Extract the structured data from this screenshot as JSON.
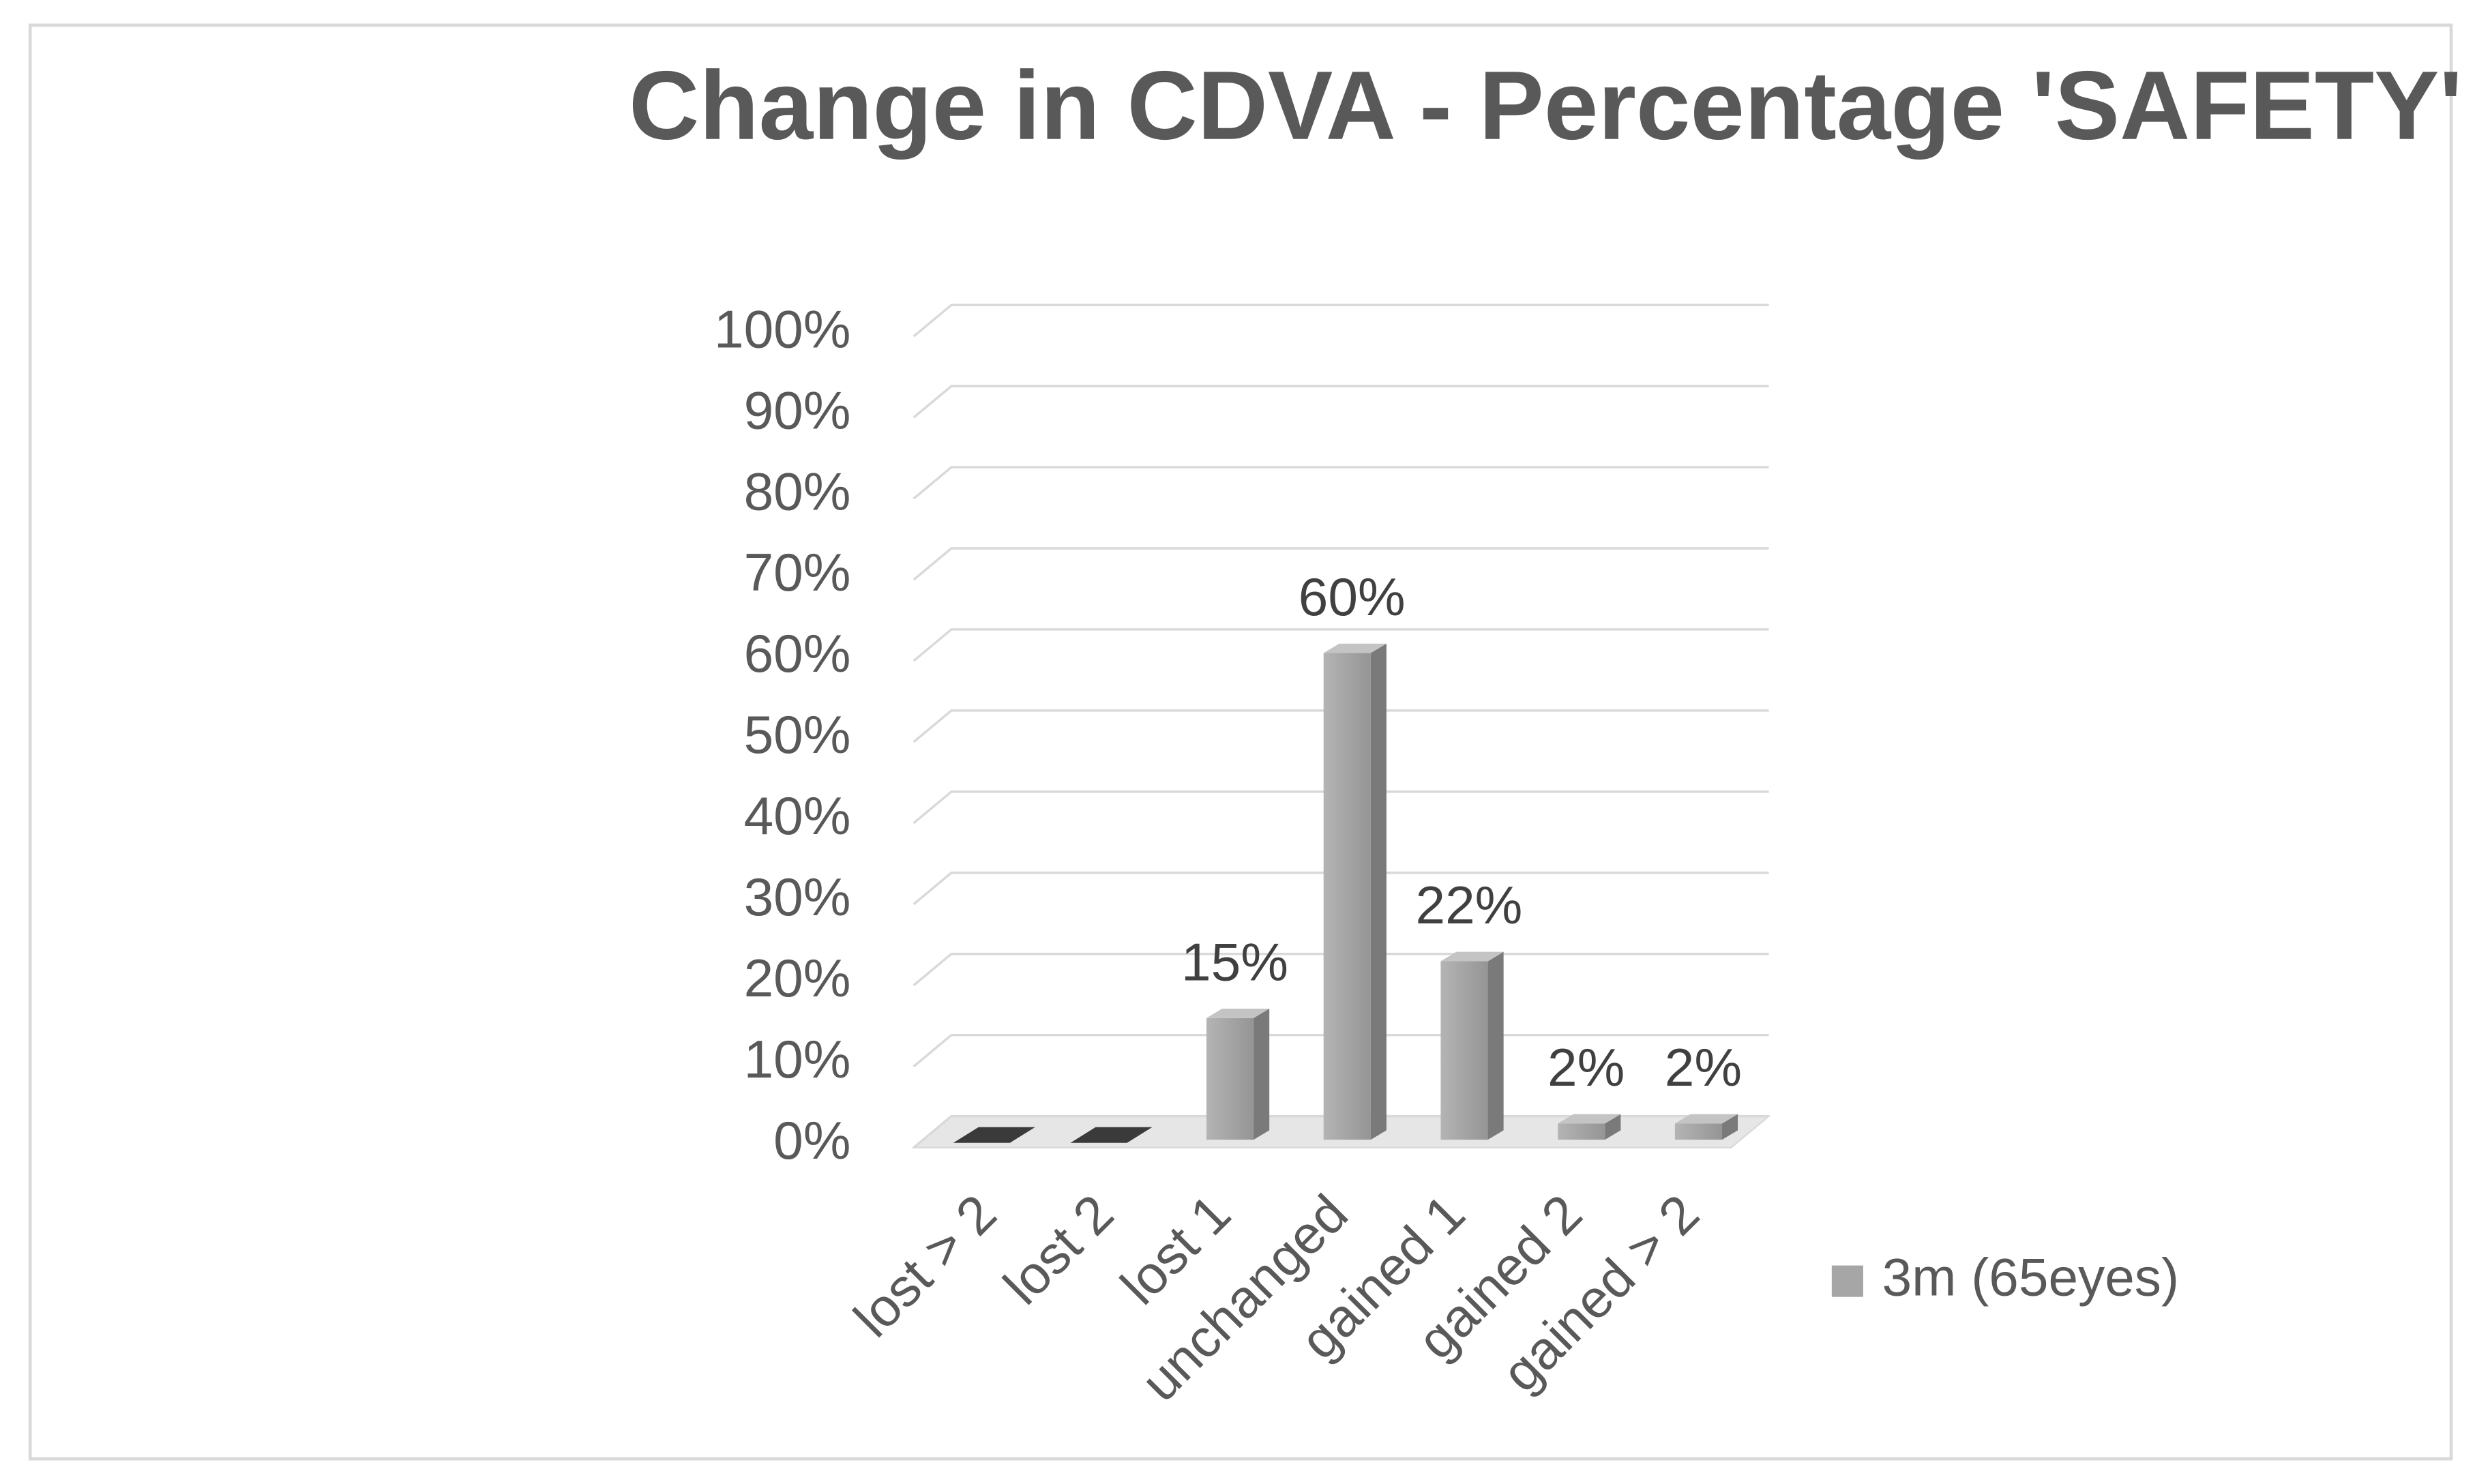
{
  "chart_data": {
    "type": "bar3d",
    "title": "Change in CDVA - Percentage 'SAFETY'",
    "categories": [
      "lost > 2",
      "lost 2",
      "lost 1",
      "unchanged",
      "gained 1",
      "gained 2",
      "gained > 2"
    ],
    "series": [
      {
        "name": "3m (65eyes)",
        "color": "#a6a6a6",
        "values": [
          0,
          0,
          15,
          60,
          22,
          2,
          2
        ],
        "value_labels": [
          null,
          null,
          "15%",
          "60%",
          "22%",
          "2%",
          "2%"
        ]
      }
    ],
    "ylim": [
      0,
      100
    ],
    "yticks": [
      {
        "value": 0,
        "label": "0%"
      },
      {
        "value": 10,
        "label": "10%"
      },
      {
        "value": 20,
        "label": "20%"
      },
      {
        "value": 30,
        "label": "30%"
      },
      {
        "value": 40,
        "label": "40%"
      },
      {
        "value": 50,
        "label": "50%"
      },
      {
        "value": 60,
        "label": "60%"
      },
      {
        "value": 70,
        "label": "70%"
      },
      {
        "value": 80,
        "label": "80%"
      },
      {
        "value": 90,
        "label": "90%"
      },
      {
        "value": 100,
        "label": "100%"
      }
    ],
    "grid": true,
    "legend": "right"
  }
}
